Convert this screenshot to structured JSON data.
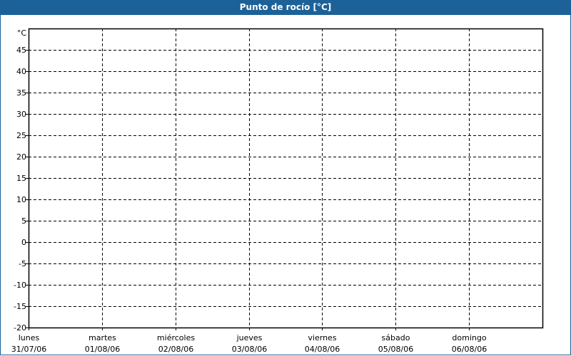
{
  "window": {
    "title": "Punto de rocío [°C]",
    "title_bar_color": "#1c6198"
  },
  "chart_data": {
    "type": "line",
    "title": "Punto de rocío [°C]",
    "ylabel": "°C",
    "xlabel": "",
    "ylim": [
      -20,
      50
    ],
    "yticks": [
      -20,
      -15,
      -10,
      -5,
      0,
      5,
      10,
      15,
      20,
      25,
      30,
      35,
      40,
      45
    ],
    "categories": [
      {
        "day": "lunes",
        "date": "31/07/06"
      },
      {
        "day": "martes",
        "date": "01/08/06"
      },
      {
        "day": "miércoles",
        "date": "02/08/06"
      },
      {
        "day": "jueves",
        "date": "03/08/06"
      },
      {
        "day": "viernes",
        "date": "04/08/06"
      },
      {
        "day": "sábado",
        "date": "05/08/06"
      },
      {
        "day": "domingo",
        "date": "06/08/06"
      }
    ],
    "grid": true,
    "grid_style": "dashed",
    "series": []
  }
}
